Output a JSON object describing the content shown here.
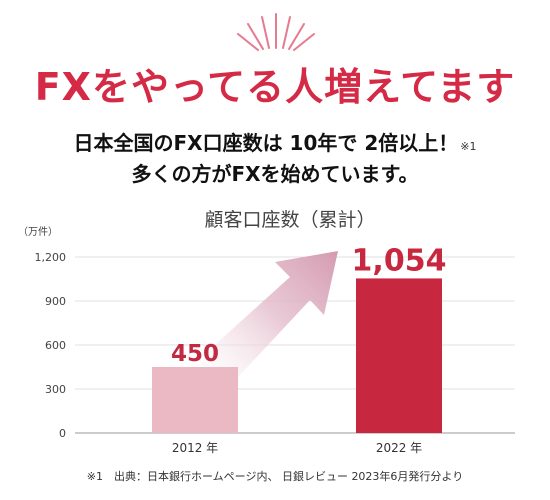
{
  "headline": "FXをやってる人増えてます",
  "subheadline_1": "日本全国のFX口座数は 10年で 2倍以上！",
  "subheadline_1_note": "※1",
  "subheadline_2": "多くの方がFXを始めています。",
  "footnote": "※1　出典：日本銀行ホームページ内、 日銀レビュー 2023年6月発行分より",
  "colors": {
    "accent": "#d42a45",
    "bar_2012": "#ebb9c3",
    "bar_2022": "#c8283f",
    "arrow": "#e3bccb"
  },
  "icons": [
    "burst-lines-icon",
    "growth-arrow-icon"
  ],
  "chart_data": {
    "type": "bar",
    "title": "顧客口座数（累計）",
    "unit_label": "（万件）",
    "categories": [
      "2012 年",
      "2022 年"
    ],
    "values": [
      450,
      1054
    ],
    "value_labels": [
      "450",
      "1,054"
    ],
    "ylim": [
      0,
      1200
    ],
    "yticks": [
      0,
      300,
      600,
      900,
      1200
    ],
    "ytick_labels": [
      "0",
      "300",
      "600",
      "900",
      "1,200"
    ],
    "grid": true
  }
}
